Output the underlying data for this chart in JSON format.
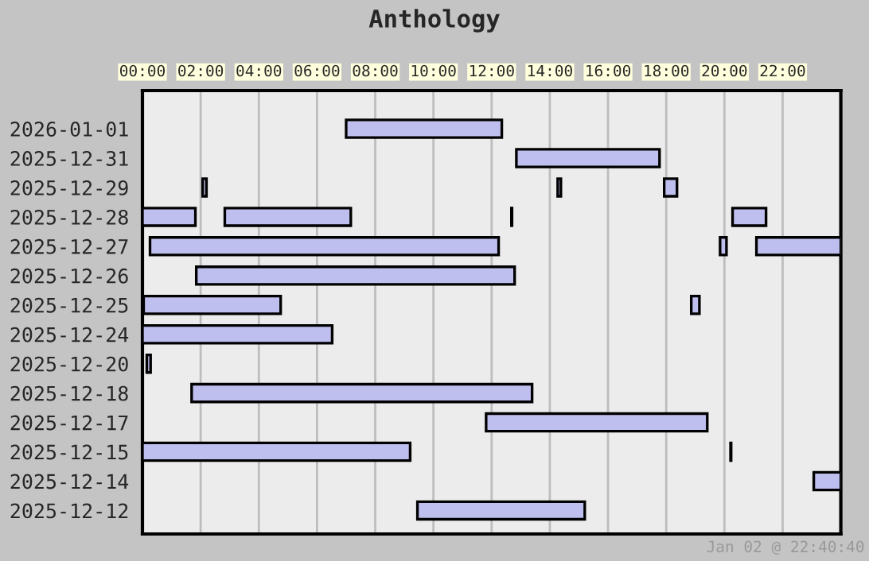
{
  "chart_data": {
    "type": "bar",
    "orientation": "horizontal",
    "title": "Anthology",
    "categories": [
      "2026-01-01",
      "2025-12-31",
      "2025-12-29",
      "2025-12-28",
      "2025-12-27",
      "2025-12-26",
      "2025-12-25",
      "2025-12-24",
      "2025-12-20",
      "2025-12-18",
      "2025-12-17",
      "2025-12-15",
      "2025-12-14",
      "2025-12-12"
    ],
    "series": [
      {
        "color": "#bfbfef",
        "base": [
          7.0,
          12.85,
          2.07,
          0,
          0.26,
          1.85,
          0.04,
          0,
          0.15,
          1.69,
          11.81,
          0,
          23.07,
          9.45
        ],
        "values": [
          5.35,
          4.92,
          0.13,
          1.82,
          11.98,
          10.94,
          4.71,
          6.52,
          0.13,
          11.7,
          7.6,
          9.2,
          0.93,
          5.75
        ]
      },
      {
        "color": "#bfbfef",
        "base": [
          null,
          null,
          14.27,
          2.83,
          19.85,
          null,
          18.86,
          null,
          null,
          null,
          null,
          20.21,
          null,
          null
        ],
        "values": [
          null,
          null,
          0.11,
          4.33,
          0.22,
          null,
          0.28,
          null,
          null,
          null,
          null,
          0.02,
          null,
          null
        ]
      },
      {
        "color": "#bfbfef",
        "base": [
          null,
          null,
          17.93,
          12.68,
          21.1,
          null,
          null,
          null,
          null,
          null,
          null,
          null,
          null,
          null
        ],
        "values": [
          null,
          null,
          0.44,
          0.02,
          2.9,
          null,
          null,
          null,
          null,
          null,
          null,
          null,
          null,
          null
        ]
      },
      {
        "color": "#bfbfef",
        "base": [
          null,
          null,
          null,
          20.28,
          null,
          null,
          null,
          null,
          null,
          null,
          null,
          null,
          null,
          null
        ],
        "values": [
          null,
          null,
          null,
          1.15,
          null,
          null,
          null,
          null,
          null,
          null,
          null,
          null,
          null,
          null
        ]
      }
    ],
    "xlim": [
      0,
      24
    ],
    "xticks": [
      {
        "value": 0,
        "label": "00:00"
      },
      {
        "value": 2,
        "label": "02:00"
      },
      {
        "value": 4,
        "label": "04:00"
      },
      {
        "value": 6,
        "label": "06:00"
      },
      {
        "value": 8,
        "label": "08:00"
      },
      {
        "value": 10,
        "label": "10:00"
      },
      {
        "value": 12,
        "label": "12:00"
      },
      {
        "value": 14,
        "label": "14:00"
      },
      {
        "value": 16,
        "label": "16:00"
      },
      {
        "value": 18,
        "label": "18:00"
      },
      {
        "value": 20,
        "label": "20:00"
      },
      {
        "value": 22,
        "label": "22:00"
      }
    ],
    "grid": "x",
    "annotations": [
      "Jan 02 @ 22:40:40"
    ]
  }
}
